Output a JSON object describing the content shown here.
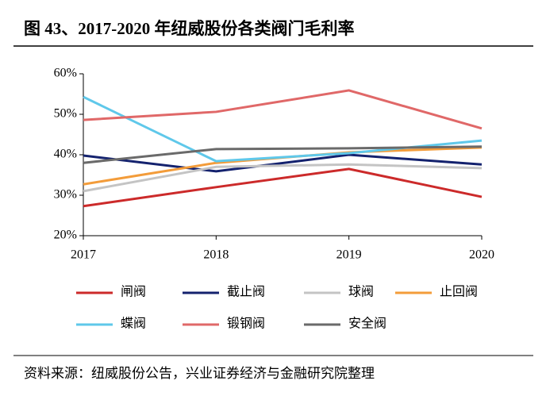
{
  "chart_data": {
    "type": "line",
    "title": "图 43、2017-2020 年纽威股份各类阀门毛利率",
    "source": "资料来源：纽威股份公告，兴业证券经济与金融研究院整理",
    "categories": [
      "2017",
      "2018",
      "2019",
      "2020"
    ],
    "ylim": [
      20,
      60
    ],
    "yticks": [
      {
        "value": 20,
        "label": "20%"
      },
      {
        "value": 30,
        "label": "30%"
      },
      {
        "value": 40,
        "label": "40%"
      },
      {
        "value": 50,
        "label": "50%"
      },
      {
        "value": 60,
        "label": "60%"
      }
    ],
    "series": [
      {
        "name": "闸阀",
        "color": "#cc2a2a",
        "values": [
          27.3,
          32,
          36.5,
          29.6
        ]
      },
      {
        "name": "截止阀",
        "color": "#14226e",
        "values": [
          39.8,
          35.9,
          40,
          37.6
        ]
      },
      {
        "name": "球阀",
        "color": "#c4c4c4",
        "values": [
          31,
          37,
          37.6,
          36.7
        ]
      },
      {
        "name": "止回阀",
        "color": "#f39c3a",
        "values": [
          32.7,
          38,
          40.6,
          41.8
        ]
      },
      {
        "name": "蝶阀",
        "color": "#5fc8ea",
        "values": [
          54.3,
          38.4,
          40.4,
          43.5
        ]
      },
      {
        "name": "锻钢阀",
        "color": "#e06868",
        "values": [
          48.6,
          50.6,
          55.9,
          46.5
        ]
      },
      {
        "name": "安全阀",
        "color": "#6a6a6a",
        "values": [
          38,
          41.4,
          41.6,
          42
        ]
      }
    ]
  }
}
